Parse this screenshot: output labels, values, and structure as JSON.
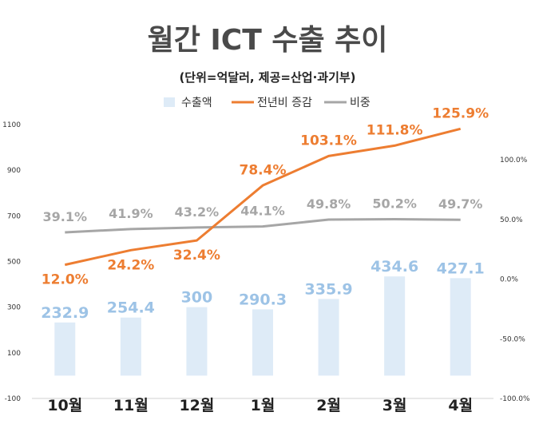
{
  "chart_data": {
    "type": "bar",
    "title": "월간 ICT 수출 추이",
    "subtitle": "(단위=억달러, 제공=산업·과기부)",
    "categories": [
      "10월",
      "11월",
      "12월",
      "1월",
      "2월",
      "3월",
      "4월"
    ],
    "series": [
      {
        "name": "수출액",
        "type": "bar",
        "axis": "left",
        "color": "#deebf7",
        "label_color": "#9dc3e6",
        "values": [
          232.9,
          254.4,
          300,
          290.3,
          335.9,
          434.6,
          427.1
        ],
        "labels": [
          "232.9",
          "254.4",
          "300",
          "290.3",
          "335.9",
          "434.6",
          "427.1"
        ]
      },
      {
        "name": "전년비 증감",
        "type": "line",
        "axis": "right",
        "color": "#ed7d31",
        "values": [
          12.0,
          24.2,
          32.4,
          78.4,
          103.1,
          111.8,
          125.9
        ],
        "labels": [
          "12.0%",
          "24.2%",
          "32.4%",
          "78.4%",
          "103.1%",
          "111.8%",
          "125.9%"
        ]
      },
      {
        "name": "비중",
        "type": "line",
        "axis": "right",
        "color": "#a6a6a6",
        "values": [
          39.1,
          41.9,
          43.2,
          44.1,
          49.8,
          50.2,
          49.7
        ],
        "labels": [
          "39.1%",
          "41.9%",
          "43.2%",
          "44.1%",
          "49.8%",
          "50.2%",
          "49.7%"
        ]
      }
    ],
    "y_left": {
      "min": -100,
      "max": 1100,
      "ticks": [
        "-100",
        "100",
        "300",
        "500",
        "700",
        "900",
        "1100"
      ]
    },
    "y_right": {
      "min": -100,
      "max": 100,
      "ticks": [
        "-100.0%",
        "-50.0%",
        "0.0%",
        "50.0%",
        "100.0%"
      ]
    },
    "legend_position": "top-center",
    "grid": false
  }
}
